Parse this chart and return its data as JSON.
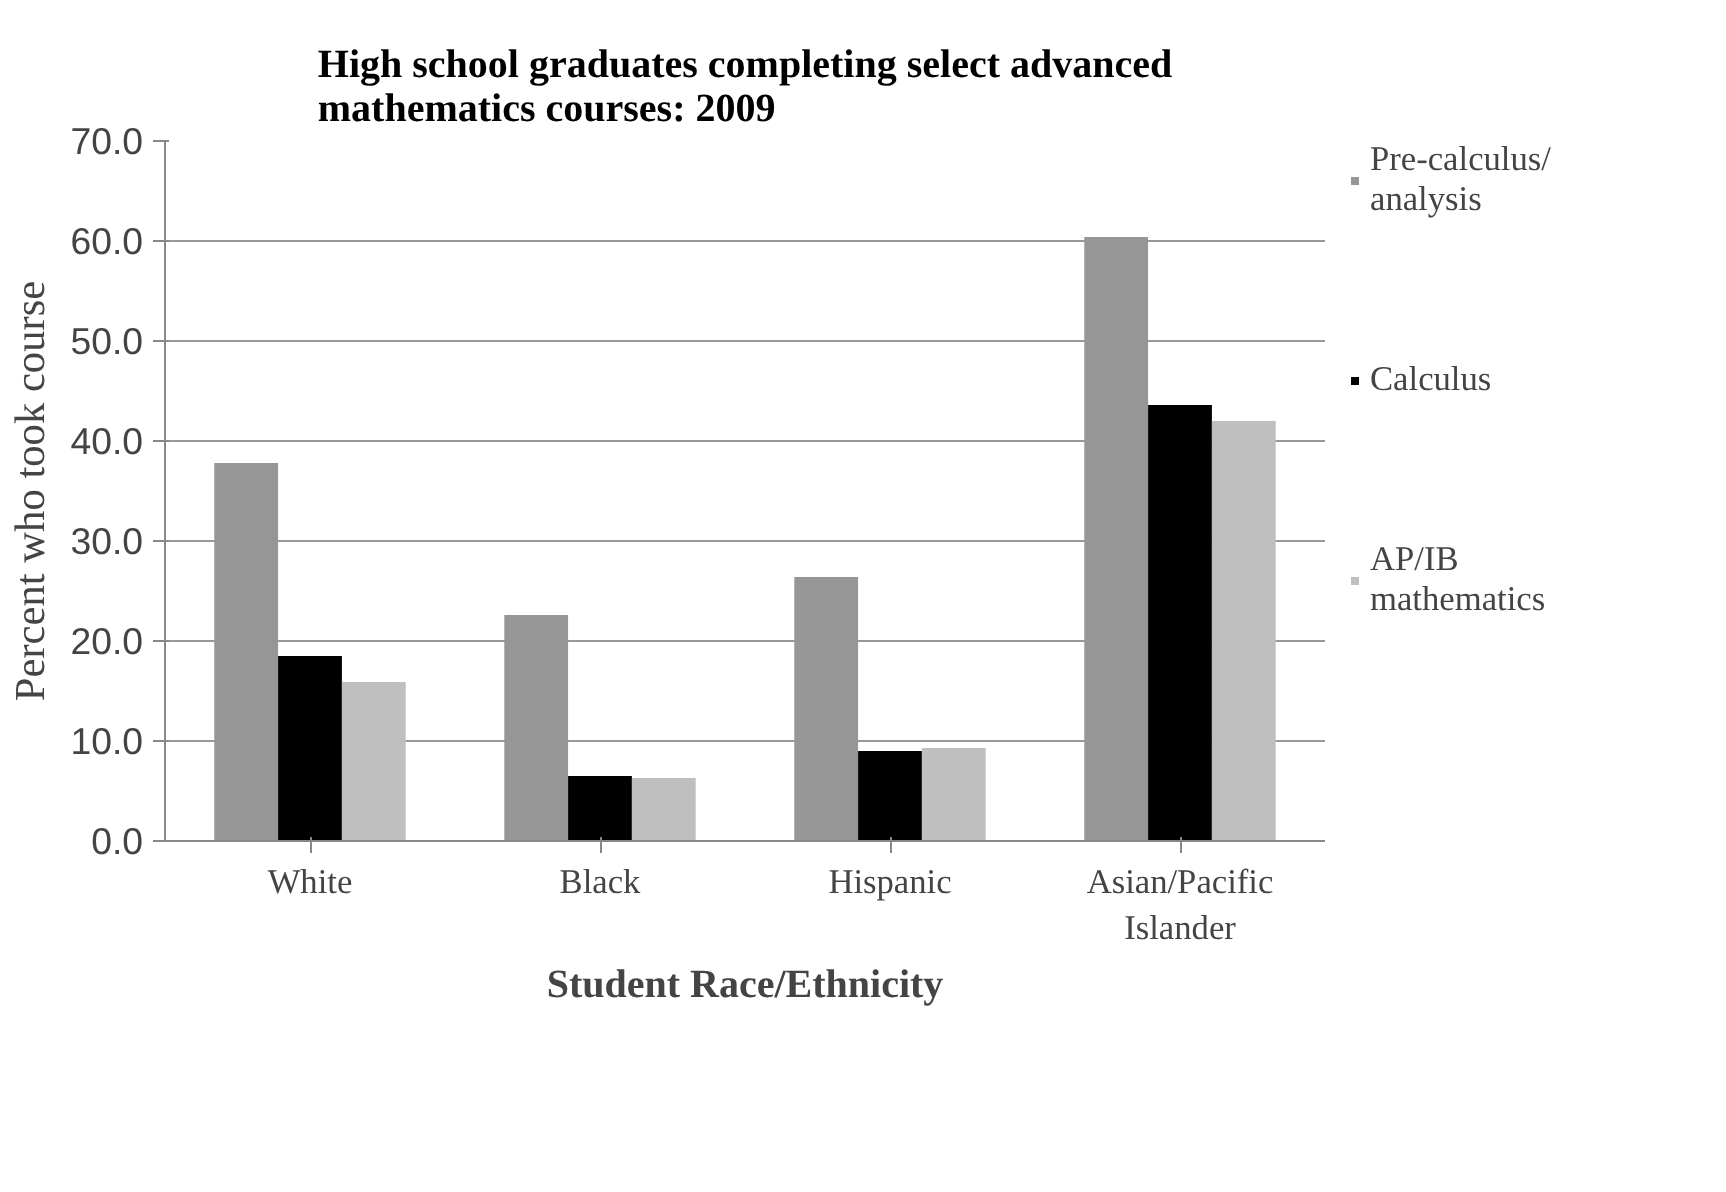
{
  "chart_data": {
    "type": "bar",
    "title": "High school graduates completing select advanced mathematics courses: 2009",
    "xlabel": "Student Race/Ethnicity",
    "ylabel": "Percent who took course",
    "categories": [
      "White",
      "Black",
      "Hispanic",
      "Asian/Pacific Islander"
    ],
    "series": [
      {
        "name": "Pre-calculus/ analysis",
        "color": "#969696",
        "values": [
          37.8,
          22.6,
          26.4,
          60.4
        ]
      },
      {
        "name": "Calculus",
        "color": "#000000",
        "values": [
          18.5,
          6.5,
          9.0,
          43.6
        ]
      },
      {
        "name": "AP/IB mathematics",
        "color": "#bfbfbf",
        "values": [
          15.9,
          6.3,
          9.3,
          42.0
        ]
      }
    ],
    "ylim": [
      0,
      70
    ],
    "yticks": [
      {
        "value": 0,
        "label": "0.0"
      },
      {
        "value": 10,
        "label": "10.0"
      },
      {
        "value": 20,
        "label": "20.0"
      },
      {
        "value": 30,
        "label": "30.0"
      },
      {
        "value": 40,
        "label": "40.0"
      },
      {
        "value": 50,
        "label": "50.0"
      },
      {
        "value": 60,
        "label": "60.0"
      },
      {
        "value": 70,
        "label": "70.0"
      }
    ],
    "grid": "y",
    "legend": "right"
  }
}
